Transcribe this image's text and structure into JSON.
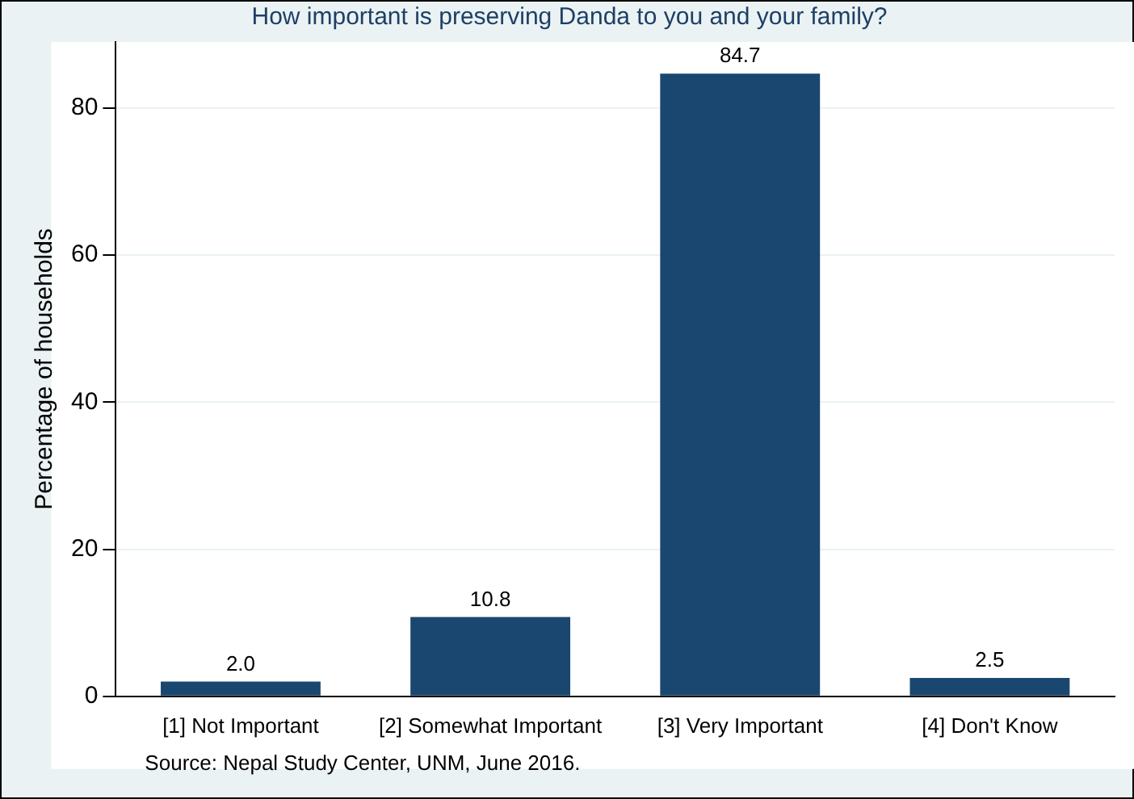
{
  "chart_data": {
    "type": "bar",
    "title": "How important is preserving Danda to you and your family?",
    "ylabel": "Percentage of households",
    "categories": [
      "[1] Not Important",
      "[2] Somewhat Important",
      "[3] Very Important",
      "[4] Don't Know"
    ],
    "values": [
      2.0,
      10.8,
      84.7,
      2.5
    ],
    "color": "#1a476f",
    "value_labels": [
      "2.0",
      "10.8",
      "84.7",
      "2.5"
    ],
    "ylim": [
      0,
      89
    ],
    "yticks": [
      0,
      20,
      40,
      60,
      80
    ],
    "grid": "y",
    "annotations": [
      "Source: Nepal Study Center, UNM, June 2016."
    ]
  }
}
